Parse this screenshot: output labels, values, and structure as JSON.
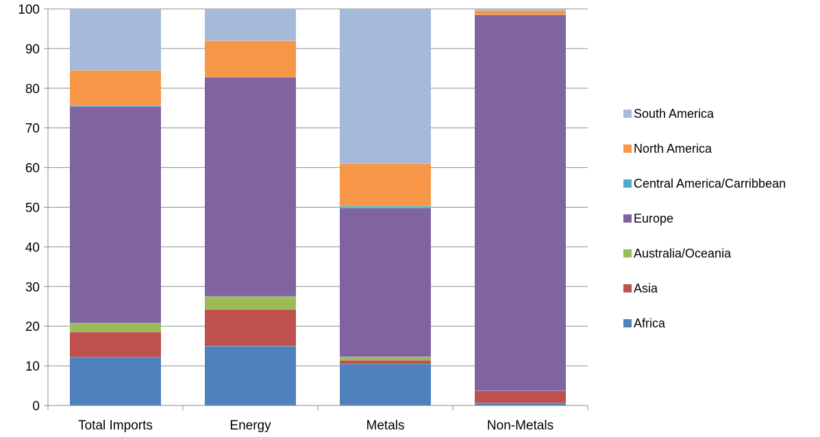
{
  "chart_data": {
    "type": "bar",
    "stacked": true,
    "categories": [
      "Total Imports",
      "Energy",
      "Metals",
      "Non-Metals"
    ],
    "ylim": [
      0,
      100
    ],
    "yticks": [
      0,
      10,
      20,
      30,
      40,
      50,
      60,
      70,
      80,
      90,
      100
    ],
    "grid": true,
    "legend_position": "right",
    "series": [
      {
        "name": "Africa",
        "color": "#4f81bd",
        "values": [
          12.2,
          15.0,
          10.5,
          0.7
        ]
      },
      {
        "name": "Asia",
        "color": "#c0504d",
        "values": [
          6.3,
          9.2,
          0.9,
          3.0
        ]
      },
      {
        "name": "Australia/Oceania",
        "color": "#9bbb59",
        "values": [
          2.3,
          3.3,
          0.9,
          0.0
        ]
      },
      {
        "name": "Europe",
        "color": "#8064a2",
        "values": [
          54.6,
          55.3,
          37.5,
          94.8
        ]
      },
      {
        "name": "Central America/Carribbean",
        "color": "#4bacc6",
        "values": [
          0.3,
          0.0,
          0.5,
          0.0
        ]
      },
      {
        "name": "North America",
        "color": "#f79646",
        "values": [
          8.8,
          9.2,
          10.7,
          1.1
        ]
      },
      {
        "name": "South America",
        "color": "#a5b9da",
        "values": [
          15.5,
          8.0,
          39.0,
          0.4
        ]
      }
    ]
  }
}
